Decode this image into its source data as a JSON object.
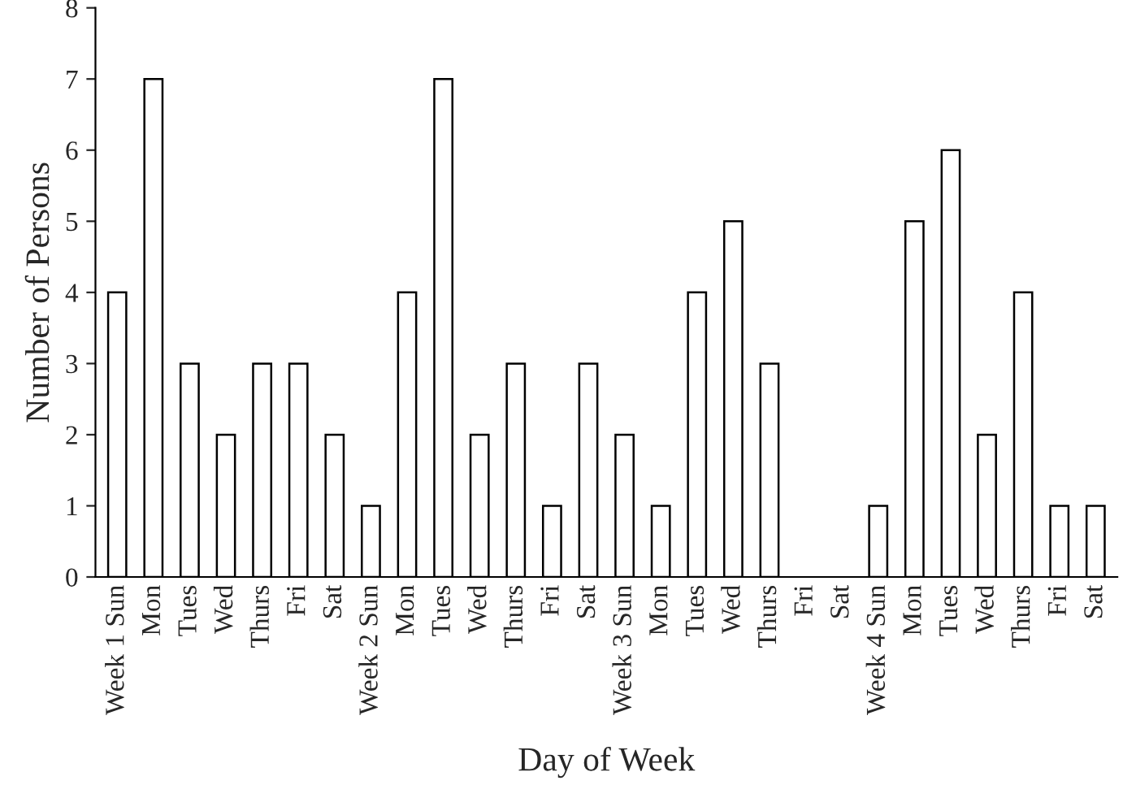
{
  "chart_data": {
    "type": "bar",
    "xlabel": "Day of Week",
    "ylabel": "Number of Persons",
    "categories": [
      "Week 1 Sun",
      "Mon",
      "Tues",
      "Wed",
      "Thurs",
      "Fri",
      "Sat",
      "Week 2 Sun",
      "Mon",
      "Tues",
      "Wed",
      "Thurs",
      "Fri",
      "Sat",
      "Week 3 Sun",
      "Mon",
      "Tues",
      "Wed",
      "Thurs",
      "Fri",
      "Sat",
      "Week 4 Sun",
      "Mon",
      "Tues",
      "Wed",
      "Thurs",
      "Fri",
      "Sat"
    ],
    "values": [
      4,
      7,
      3,
      2,
      3,
      3,
      2,
      1,
      4,
      7,
      2,
      3,
      1,
      3,
      2,
      1,
      4,
      5,
      3,
      0,
      0,
      1,
      5,
      6,
      2,
      4,
      1,
      1
    ],
    "color": "#ffffff",
    "ylim": [
      0,
      8
    ],
    "yticks": [
      0,
      1,
      2,
      3,
      4,
      5,
      6,
      7,
      8
    ],
    "grid": false,
    "legend": false
  }
}
